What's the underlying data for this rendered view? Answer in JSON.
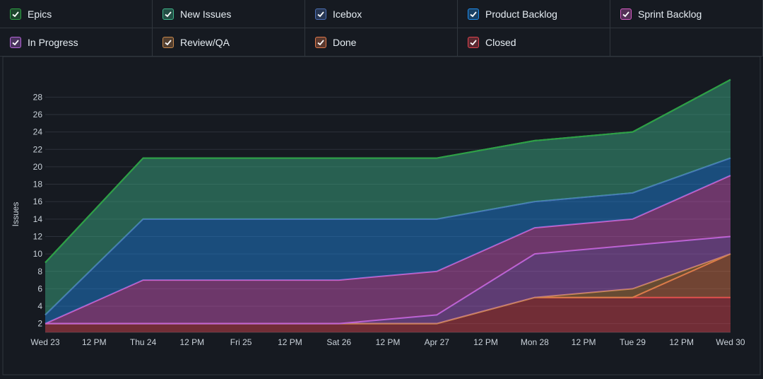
{
  "chart_data": {
    "type": "stacked-area",
    "y_label": "Issues",
    "xticks": [
      "Wed 23",
      "12 PM",
      "Thu 24",
      "12 PM",
      "Fri 25",
      "12 PM",
      "Sat 26",
      "12 PM",
      "Apr 27",
      "12 PM",
      "Mon 28",
      "12 PM",
      "Tue 29",
      "12 PM",
      "Wed 30"
    ],
    "ylim": [
      1,
      29
    ],
    "yticks": [
      2,
      4,
      6,
      8,
      10,
      12,
      14,
      16,
      18,
      20,
      22,
      24,
      26,
      28
    ],
    "grid": true,
    "series": [
      {
        "name": "Epics",
        "color": "#2ea043",
        "values": [
          0,
          0,
          0,
          0,
          0,
          0,
          0,
          0
        ]
      },
      {
        "name": "New Issues",
        "color": "#3fb68b",
        "values": [
          6,
          7,
          7,
          7,
          7,
          7,
          7,
          9
        ]
      },
      {
        "name": "Icebox",
        "color": "#4c6fb5",
        "values": [
          0,
          0,
          0,
          0,
          0,
          0,
          0,
          0
        ]
      },
      {
        "name": "Product Backlog",
        "color": "#1f8ceb",
        "values": [
          1,
          7,
          7,
          7,
          6,
          3,
          3,
          2
        ]
      },
      {
        "name": "Sprint Backlog",
        "color": "#d65cc4",
        "values": [
          0,
          5,
          5,
          5,
          5,
          3,
          3,
          7
        ]
      },
      {
        "name": "In Progress",
        "color": "#b565d8",
        "values": [
          0,
          0,
          0,
          0,
          1,
          5,
          5,
          2
        ]
      },
      {
        "name": "Review/QA",
        "color": "#c8884a",
        "values": [
          0,
          0,
          0,
          0,
          0,
          0,
          1,
          0
        ]
      },
      {
        "name": "Done",
        "color": "#e0784a",
        "values": [
          0,
          0,
          0,
          0,
          0,
          0,
          0,
          5
        ]
      },
      {
        "name": "Closed",
        "color": "#e0444f",
        "values": [
          1,
          1,
          1,
          1,
          1,
          4,
          4,
          4
        ]
      }
    ]
  }
}
